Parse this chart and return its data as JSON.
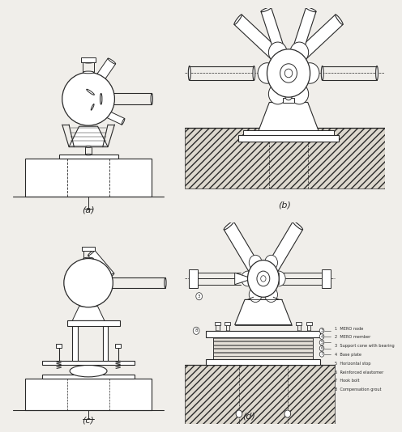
{
  "bg_color": "#f0eeea",
  "labels": {
    "a": "(a)",
    "b": "(b)",
    "c": "(c)",
    "d": "(d)"
  },
  "legend_items": [
    "1  MERO node",
    "2  MERO member",
    "3  Support cone with bearing",
    "4  Base plate",
    "5  Horizontal stop",
    "6  Reinforced elastomer",
    "7  Hook bolt",
    "8  Compensation grout"
  ],
  "lc": "#2a2a2a",
  "figure_width": 4.74,
  "figure_height": 5.3
}
